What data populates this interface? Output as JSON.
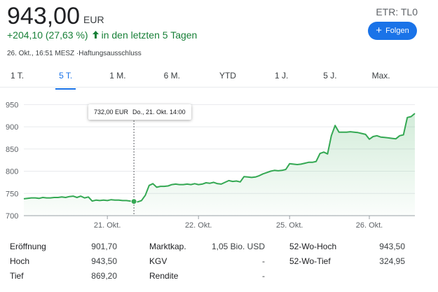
{
  "quote": {
    "price": "943,00",
    "currency": "EUR",
    "exchange_label": "ETR: TL0",
    "change_text": "+204,10 (27,63 %)",
    "change_arrow_icon": "arrow-up-icon",
    "period_text": "in den letzten 5 Tagen",
    "follow_label": "Folgen",
    "follow_icon": "plus-icon",
    "meta_text": "26. Okt., 16:51 MESZ ·Haftungsausschluss",
    "positive_color": "#188038",
    "accent_color": "#1a73e8"
  },
  "tabs": [
    {
      "label": "1 T.",
      "active": false
    },
    {
      "label": "5 T.",
      "active": true
    },
    {
      "label": "1 M.",
      "active": false
    },
    {
      "label": "6 M.",
      "active": false
    },
    {
      "label": "YTD",
      "active": false
    },
    {
      "label": "1 J.",
      "active": false
    },
    {
      "label": "5 J.",
      "active": false
    },
    {
      "label": "Max.",
      "active": false
    }
  ],
  "tooltip": {
    "value": "732,00 EUR",
    "time": "Do., 21. Okt. 14:00"
  },
  "chart_data": {
    "type": "area",
    "title": "",
    "xlabel": "",
    "ylabel": "",
    "x_ticks": [
      "21. Okt.",
      "22. Okt.",
      "25. Okt.",
      "26. Okt."
    ],
    "y_ticks": [
      700,
      750,
      800,
      850,
      900,
      950
    ],
    "ylim": [
      700,
      960
    ],
    "grid": true,
    "line_color": "#34a853",
    "highlight": {
      "index": 29,
      "value": 732
    },
    "series": [
      {
        "values": [
          738,
          739,
          740,
          740,
          739,
          741,
          740,
          740,
          741,
          741,
          742,
          741,
          743,
          744,
          741,
          744,
          740,
          742,
          733,
          735,
          734,
          735,
          734,
          736,
          735,
          735,
          734,
          734,
          733,
          732,
          731,
          734,
          746,
          768,
          772,
          764,
          766,
          766,
          767,
          770,
          771,
          770,
          770,
          771,
          770,
          772,
          770,
          771,
          774,
          773,
          775,
          772,
          771,
          775,
          779,
          777,
          778,
          776,
          788,
          787,
          786,
          787,
          790,
          794,
          797,
          800,
          802,
          801,
          802,
          804,
          817,
          816,
          815,
          816,
          818,
          820,
          820,
          822,
          840,
          843,
          839,
          880,
          903,
          888,
          888,
          888,
          889,
          888,
          887,
          885,
          883,
          872,
          878,
          880,
          877,
          876,
          875,
          874,
          873,
          880,
          882,
          921,
          923,
          930
        ]
      }
    ]
  },
  "stats": {
    "col1": [
      {
        "label": "Eröffnung",
        "value": "901,70"
      },
      {
        "label": "Hoch",
        "value": "943,50"
      },
      {
        "label": "Tief",
        "value": "869,20"
      }
    ],
    "col2": [
      {
        "label": "Marktkap.",
        "value": "1,05 Bio. USD"
      },
      {
        "label": "KGV",
        "value": "-"
      },
      {
        "label": "Rendite",
        "value": "-"
      }
    ],
    "col3": [
      {
        "label": "52-Wo-Hoch",
        "value": "943,50"
      },
      {
        "label": "52-Wo-Tief",
        "value": "324,95"
      }
    ]
  }
}
